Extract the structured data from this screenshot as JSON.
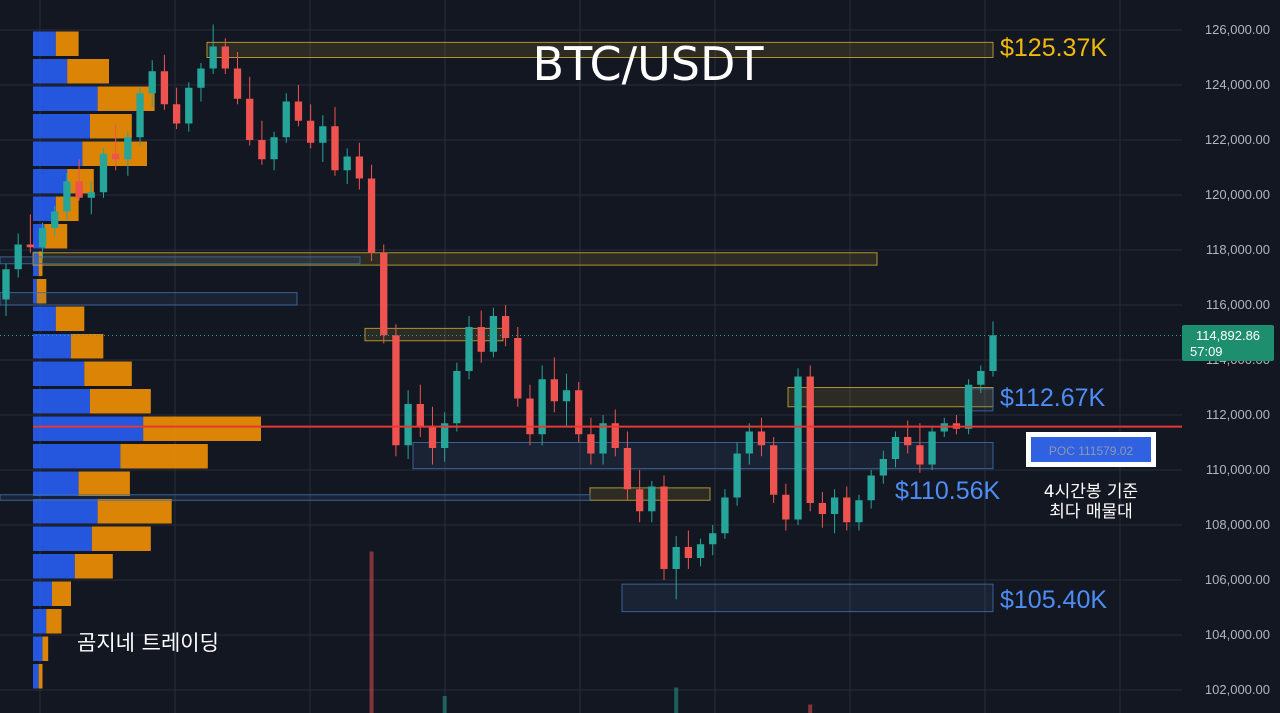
{
  "chart_data": {
    "type": "candlestick",
    "title": "BTC/USDT",
    "watermark": "곰지네 트레이딩",
    "ylim": [
      101500,
      126800
    ],
    "yticks": [
      "126,000.00",
      "124,000.00",
      "122,000.00",
      "120,000.00",
      "118,000.00",
      "116,000.00",
      "114,000.00",
      "112,000.00",
      "110,000.00",
      "108,000.00",
      "106,000.00",
      "104,000.00",
      "102,000.00"
    ],
    "ytick_values": [
      126000,
      124000,
      122000,
      120000,
      118000,
      116000,
      114000,
      112000,
      110000,
      108000,
      106000,
      104000,
      102000
    ],
    "current_price": {
      "value": 114892.86,
      "label": "114,892.86",
      "countdown": "57:09"
    },
    "poc": {
      "value": 111579.02,
      "label": "POC  111579.02",
      "note": [
        "4시간봉 기준",
        "최다 매물대"
      ]
    },
    "levels": [
      {
        "label": "$125.37K",
        "value": 125370,
        "color": "#f0b90b"
      },
      {
        "label": "$112.67K",
        "value": 112670,
        "color": "#4d8df5"
      },
      {
        "label": "$110.56K",
        "value": 110560,
        "color": "#4d8df5"
      },
      {
        "label": "$105.40K",
        "value": 105400,
        "color": "#4d8df5"
      }
    ],
    "zones": [
      {
        "low": 125000,
        "high": 125550,
        "color": "#c8a832"
      },
      {
        "low": 117450,
        "high": 117900,
        "color": "#c8a832"
      },
      {
        "low": 117500,
        "high": 117750,
        "color": "#3d6fa6"
      },
      {
        "low": 116000,
        "high": 116450,
        "color": "#3d6fa6"
      },
      {
        "low": 114700,
        "high": 115150,
        "color": "#c8a832"
      },
      {
        "low": 112300,
        "high": 113000,
        "color": "#c8a832"
      },
      {
        "low": 110050,
        "high": 111000,
        "color": "#3d6fa6"
      },
      {
        "low": 108900,
        "high": 109350,
        "color": "#c8a832"
      },
      {
        "low": 108900,
        "high": 109100,
        "color": "#3d6fa6"
      },
      {
        "low": 104850,
        "high": 105850,
        "color": "#3d6fa6"
      },
      {
        "low": 112150,
        "high": 112950,
        "color": "#3d6fa6"
      }
    ],
    "volume_profile": {
      "bin_size": 1000,
      "bins": [
        {
          "price": 125500,
          "buy": 0.12,
          "sell": 0.12
        },
        {
          "price": 124500,
          "buy": 0.18,
          "sell": 0.22
        },
        {
          "price": 123500,
          "buy": 0.34,
          "sell": 0.3
        },
        {
          "price": 122500,
          "buy": 0.3,
          "sell": 0.22
        },
        {
          "price": 121500,
          "buy": 0.26,
          "sell": 0.34
        },
        {
          "price": 120500,
          "buy": 0.18,
          "sell": 0.14
        },
        {
          "price": 119500,
          "buy": 0.12,
          "sell": 0.12
        },
        {
          "price": 118500,
          "buy": 0.06,
          "sell": 0.12
        },
        {
          "price": 117500,
          "buy": 0.03,
          "sell": 0.02
        },
        {
          "price": 116500,
          "buy": 0.02,
          "sell": 0.05
        },
        {
          "price": 115500,
          "buy": 0.12,
          "sell": 0.15
        },
        {
          "price": 114500,
          "buy": 0.2,
          "sell": 0.17
        },
        {
          "price": 113500,
          "buy": 0.27,
          "sell": 0.25
        },
        {
          "price": 112500,
          "buy": 0.3,
          "sell": 0.32
        },
        {
          "price": 111500,
          "buy": 0.58,
          "sell": 0.62
        },
        {
          "price": 110500,
          "buy": 0.46,
          "sell": 0.46
        },
        {
          "price": 109500,
          "buy": 0.24,
          "sell": 0.27
        },
        {
          "price": 108500,
          "buy": 0.34,
          "sell": 0.39
        },
        {
          "price": 107500,
          "buy": 0.31,
          "sell": 0.31
        },
        {
          "price": 106500,
          "buy": 0.22,
          "sell": 0.2
        },
        {
          "price": 105500,
          "buy": 0.1,
          "sell": 0.1
        },
        {
          "price": 104500,
          "buy": 0.07,
          "sell": 0.08
        },
        {
          "price": 103500,
          "buy": 0.05,
          "sell": 0.03
        },
        {
          "price": 102500,
          "buy": 0.03,
          "sell": 0.02
        }
      ]
    },
    "candles": [
      [
        116200,
        117500,
        115600,
        117300
      ],
      [
        117300,
        118600,
        117000,
        118200
      ],
      [
        118200,
        119300,
        117900,
        118100
      ],
      [
        118100,
        119000,
        117700,
        118800
      ],
      [
        118800,
        119600,
        118500,
        119400
      ],
      [
        119400,
        120800,
        119100,
        120500
      ],
      [
        120500,
        121300,
        119800,
        119900
      ],
      [
        119900,
        120500,
        119300,
        120100
      ],
      [
        120100,
        121700,
        119900,
        121500
      ],
      [
        121500,
        122600,
        120900,
        121300
      ],
      [
        121300,
        122300,
        120700,
        122100
      ],
      [
        122100,
        123900,
        121800,
        123700
      ],
      [
        123700,
        124900,
        123200,
        124500
      ],
      [
        124500,
        125100,
        123100,
        123300
      ],
      [
        123300,
        123900,
        122400,
        122600
      ],
      [
        122600,
        124100,
        122300,
        123900
      ],
      [
        123900,
        124800,
        123400,
        124600
      ],
      [
        124600,
        126200,
        124400,
        125400
      ],
      [
        125400,
        125700,
        124400,
        124600
      ],
      [
        124600,
        125200,
        123300,
        123500
      ],
      [
        123500,
        124300,
        121800,
        122000
      ],
      [
        122000,
        122700,
        121100,
        121300
      ],
      [
        121300,
        122300,
        120900,
        122100
      ],
      [
        122100,
        123700,
        121900,
        123400
      ],
      [
        123400,
        124000,
        122500,
        122700
      ],
      [
        122700,
        123300,
        121700,
        121900
      ],
      [
        121900,
        122900,
        121200,
        122500
      ],
      [
        122500,
        123200,
        120700,
        120900
      ],
      [
        120900,
        121700,
        120400,
        121400
      ],
      [
        121400,
        121900,
        120200,
        120600
      ],
      [
        120600,
        121100,
        117600,
        117900
      ],
      [
        117900,
        118200,
        114600,
        114900
      ],
      [
        114900,
        115300,
        110500,
        110900
      ],
      [
        110900,
        112900,
        110400,
        112400
      ],
      [
        112400,
        113100,
        111200,
        111600
      ],
      [
        111600,
        112300,
        110200,
        110800
      ],
      [
        110800,
        112100,
        110300,
        111700
      ],
      [
        111700,
        113900,
        111400,
        113600
      ],
      [
        113600,
        115600,
        113300,
        115200
      ],
      [
        115200,
        115800,
        113900,
        114300
      ],
      [
        114300,
        115900,
        114100,
        115600
      ],
      [
        115600,
        116000,
        114500,
        114800
      ],
      [
        114800,
        115200,
        112300,
        112600
      ],
      [
        112600,
        113100,
        110900,
        111300
      ],
      [
        111300,
        113800,
        110900,
        113300
      ],
      [
        113300,
        114100,
        112100,
        112500
      ],
      [
        112500,
        113500,
        111600,
        112900
      ],
      [
        112900,
        113200,
        111000,
        111300
      ],
      [
        111300,
        111900,
        110200,
        110600
      ],
      [
        110600,
        112000,
        110200,
        111700
      ],
      [
        111700,
        112200,
        110500,
        110800
      ],
      [
        110800,
        111400,
        108900,
        109300
      ],
      [
        109300,
        110000,
        108100,
        108500
      ],
      [
        108500,
        109600,
        108100,
        109400
      ],
      [
        109400,
        109800,
        106000,
        106400
      ],
      [
        106400,
        107600,
        105300,
        107200
      ],
      [
        107200,
        107800,
        106400,
        106800
      ],
      [
        106800,
        107500,
        106500,
        107300
      ],
      [
        107300,
        108000,
        106900,
        107700
      ],
      [
        107700,
        109300,
        107500,
        109000
      ],
      [
        109000,
        111000,
        108700,
        110600
      ],
      [
        110600,
        111700,
        110200,
        111400
      ],
      [
        111400,
        111900,
        110500,
        110900
      ],
      [
        110900,
        111200,
        108800,
        109100
      ],
      [
        109100,
        109500,
        107800,
        108200
      ],
      [
        108200,
        113700,
        108000,
        113400
      ],
      [
        113400,
        113800,
        108500,
        108800
      ],
      [
        108800,
        109200,
        107900,
        108400
      ],
      [
        108400,
        109300,
        107700,
        109000
      ],
      [
        109000,
        109400,
        107800,
        108100
      ],
      [
        108100,
        109100,
        107800,
        108900
      ],
      [
        108900,
        110000,
        108600,
        109800
      ],
      [
        109800,
        110700,
        109500,
        110400
      ],
      [
        110400,
        111400,
        110100,
        111200
      ],
      [
        111200,
        111800,
        110600,
        110900
      ],
      [
        110900,
        111700,
        109900,
        110200
      ],
      [
        110200,
        111600,
        110000,
        111400
      ],
      [
        111400,
        111900,
        111200,
        111700
      ],
      [
        111700,
        112000,
        111300,
        111500
      ],
      [
        111500,
        113300,
        111300,
        113100
      ],
      [
        113100,
        113800,
        112800,
        113600
      ],
      [
        113600,
        115400,
        113400,
        114900
      ]
    ],
    "volume": [
      {
        "x_index": 30,
        "value": 0.95,
        "up": false
      },
      {
        "x_index": 36,
        "value": 0.1,
        "up": true
      },
      {
        "x_index": 55,
        "value": 0.15,
        "up": true
      },
      {
        "x_index": 66,
        "value": 0.05,
        "up": false
      }
    ],
    "colors": {
      "up": "#26a69a",
      "down": "#ef5350",
      "buy": "#2962ff",
      "sell": "#ff9800",
      "poc_line": "#e53935",
      "grid": "#2a2e39"
    }
  }
}
